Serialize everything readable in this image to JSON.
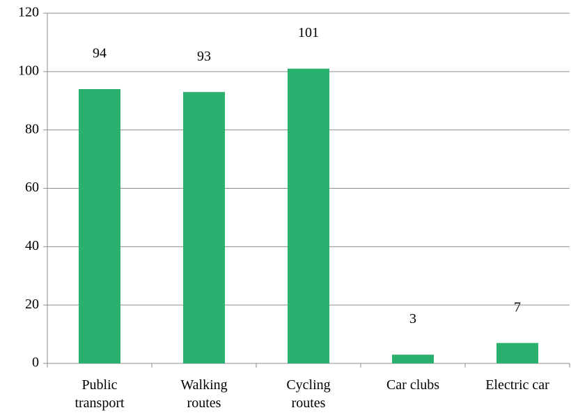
{
  "chart_data": {
    "type": "bar",
    "categories": [
      "Public transport",
      "Walking routes",
      "Cycling routes",
      "Car clubs",
      "Electric car"
    ],
    "values": [
      94,
      93,
      101,
      3,
      7
    ],
    "color": "#2ab06f",
    "ylim": [
      0,
      120
    ],
    "yticks": [
      0,
      20,
      40,
      60,
      80,
      100,
      120
    ],
    "grid": true
  }
}
